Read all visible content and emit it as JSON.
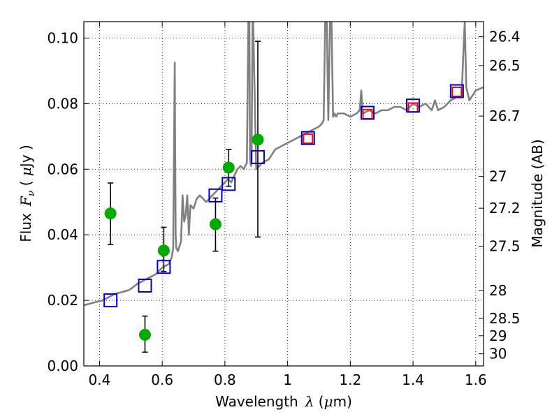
{
  "chart_data": {
    "type": "scatter",
    "xlabel_text": "Wavelength",
    "xlabel_symbol": "λ",
    "xlabel_unit_open": " (",
    "xlabel_unit_mu": "μ",
    "xlabel_unit_close": "m)",
    "ylabel_text": "Flux",
    "ylabel_symbol": "F",
    "ylabel_subscript": "ν",
    "ylabel_unit_open": " ( ",
    "ylabel_unit_mu": "μ",
    "ylabel_unit_close": "Jy )",
    "y2label": "Magnitude (AB)",
    "xlim": [
      0.35,
      1.625
    ],
    "ylim": [
      0.0,
      0.105
    ],
    "grid": true,
    "x_ticks": [
      0.4,
      0.6,
      0.8,
      1.0,
      1.2,
      1.4,
      1.6
    ],
    "x_tick_labels": [
      "0.4",
      "0.6",
      "0.8",
      "1",
      "1.2",
      "1.4",
      "1.6"
    ],
    "y_ticks": [
      0.0,
      0.02,
      0.04,
      0.06,
      0.08,
      0.1
    ],
    "y_tick_labels": [
      "0.00",
      "0.02",
      "0.04",
      "0.06",
      "0.08",
      "0.10"
    ],
    "y2_ticks": [
      {
        "label": "26.4",
        "flux": 0.1004
      },
      {
        "label": "26.5",
        "flux": 0.0916
      },
      {
        "label": "26.7",
        "flux": 0.0762
      },
      {
        "label": "27",
        "flux": 0.0578
      },
      {
        "label": "27.2",
        "flux": 0.0481
      },
      {
        "label": "27.5",
        "flux": 0.0365
      },
      {
        "label": "28",
        "flux": 0.023
      },
      {
        "label": "28.5",
        "flux": 0.0145
      },
      {
        "label": "29",
        "flux": 0.0092
      },
      {
        "label": "30",
        "flux": 0.0037
      }
    ],
    "series": [
      {
        "name": "model_spectrum",
        "kind": "line",
        "color": "#808080",
        "x": [
          0.35,
          0.37,
          0.39,
          0.41,
          0.43,
          0.45,
          0.47,
          0.49,
          0.5,
          0.52,
          0.54,
          0.56,
          0.58,
          0.6,
          0.62,
          0.63,
          0.635,
          0.64,
          0.641,
          0.643,
          0.645,
          0.65,
          0.66,
          0.665,
          0.67,
          0.675,
          0.68,
          0.685,
          0.69,
          0.7,
          0.71,
          0.72,
          0.73,
          0.74,
          0.75,
          0.76,
          0.77,
          0.78,
          0.79,
          0.8,
          0.81,
          0.82,
          0.83,
          0.84,
          0.85,
          0.86,
          0.87,
          0.875,
          0.878,
          0.88,
          0.883,
          0.885,
          0.888,
          0.89,
          0.9,
          0.92,
          0.94,
          0.96,
          0.98,
          1.0,
          1.02,
          1.04,
          1.06,
          1.08,
          1.1,
          1.11,
          1.115,
          1.12,
          1.125,
          1.13,
          1.135,
          1.14,
          1.145,
          1.15,
          1.155,
          1.16,
          1.18,
          1.2,
          1.22,
          1.23,
          1.235,
          1.24,
          1.26,
          1.28,
          1.3,
          1.32,
          1.34,
          1.36,
          1.38,
          1.4,
          1.42,
          1.44,
          1.46,
          1.47,
          1.48,
          1.5,
          1.52,
          1.54,
          1.555,
          1.56,
          1.565,
          1.57,
          1.58,
          1.6,
          1.625
        ],
        "y": [
          0.0185,
          0.019,
          0.0195,
          0.02,
          0.021,
          0.022,
          0.0225,
          0.023,
          0.0235,
          0.025,
          0.026,
          0.027,
          0.028,
          0.03,
          0.031,
          0.033,
          0.036,
          0.0925,
          0.07,
          0.04,
          0.036,
          0.035,
          0.038,
          0.052,
          0.044,
          0.046,
          0.052,
          0.04,
          0.049,
          0.048,
          0.051,
          0.052,
          0.051,
          0.05,
          0.051,
          0.052,
          0.053,
          0.054,
          0.055,
          0.056,
          0.057,
          0.056,
          0.058,
          0.06,
          0.061,
          0.06,
          0.062,
          0.105,
          0.105,
          0.063,
          0.061,
          0.062,
          0.105,
          0.105,
          0.06,
          0.062,
          0.063,
          0.066,
          0.067,
          0.068,
          0.069,
          0.07,
          0.071,
          0.072,
          0.073,
          0.074,
          0.075,
          0.105,
          0.105,
          0.075,
          0.105,
          0.105,
          0.076,
          0.077,
          0.076,
          0.077,
          0.077,
          0.076,
          0.077,
          0.078,
          0.084,
          0.077,
          0.078,
          0.077,
          0.078,
          0.078,
          0.079,
          0.079,
          0.078,
          0.08,
          0.079,
          0.08,
          0.078,
          0.081,
          0.078,
          0.079,
          0.081,
          0.082,
          0.082,
          0.094,
          0.105,
          0.085,
          0.081,
          0.084,
          0.085
        ]
      },
      {
        "name": "model_photometry",
        "kind": "open_square",
        "color": "#ff0000",
        "x": [
          1.065,
          1.255,
          1.4,
          1.54
        ],
        "y": [
          0.0693,
          0.0768,
          0.0788,
          0.0836
        ]
      },
      {
        "name": "synthetic_photometry",
        "kind": "open_square",
        "color": "#0000cc",
        "x": [
          0.435,
          0.545,
          0.605,
          0.77,
          0.812,
          0.905,
          1.065,
          1.255,
          1.4,
          1.54
        ],
        "y": [
          0.02,
          0.0245,
          0.0302,
          0.052,
          0.0555,
          0.0637,
          0.0695,
          0.0772,
          0.0794,
          0.0838
        ]
      },
      {
        "name": "observed_photometry",
        "kind": "filled_circle",
        "color": "#00aa00",
        "x": [
          0.435,
          0.545,
          0.605,
          0.77,
          0.812,
          0.905
        ],
        "y": [
          0.0465,
          0.0095,
          0.0352,
          0.0432,
          0.0605,
          0.069
        ],
        "err_low": [
          0.037,
          0.0042,
          0.0288,
          0.035,
          0.0548,
          0.0393
        ],
        "err_high": [
          0.0558,
          0.0152,
          0.0423,
          0.0512,
          0.066,
          0.099
        ]
      }
    ]
  }
}
